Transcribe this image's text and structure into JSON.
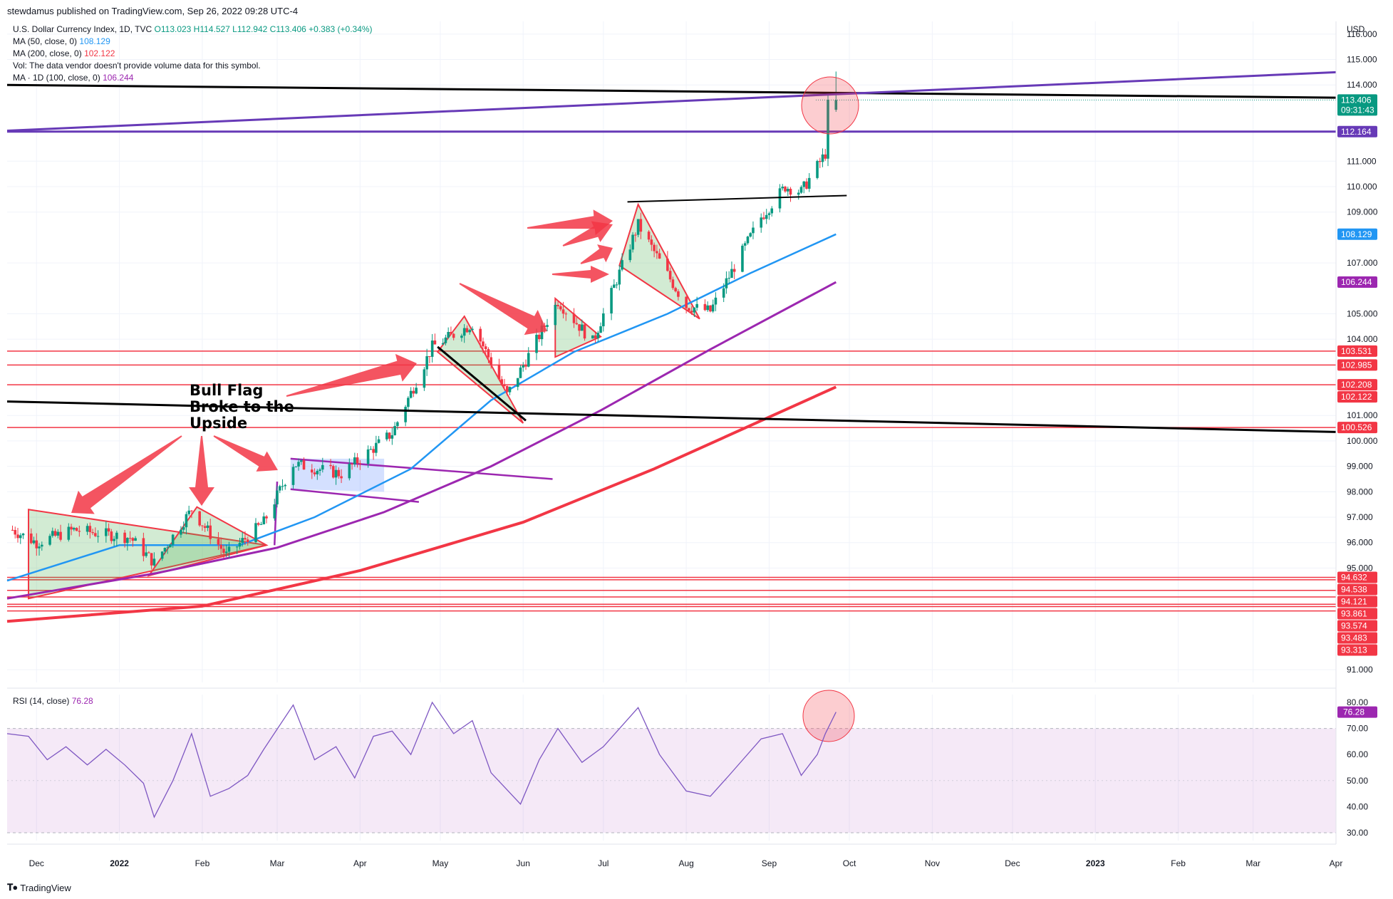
{
  "header": {
    "published": "stewdamus published on TradingView.com, Sep 26, 2022 09:28 UTC-4",
    "symbol": "U.S. Dollar Currency Index, 1D, TVC",
    "ohlc": "O113.023  H114.527  L112.942  C113.406  +0.383 (+0.34%)",
    "ma50_label": "MA (50, close, 0)",
    "ma50_value": "108.129",
    "ma200_label": "MA (200, close, 0)",
    "ma200_value": "102.122",
    "vol_note": "Vol: The data vendor doesn't provide volume data for this symbol.",
    "ma100_label": "MA · 1D (100, close, 0)",
    "ma100_value": "106.244",
    "rsi_label": "RSI (14, close)",
    "rsi_value": "76.28"
  },
  "footer": {
    "brand": "TradingView"
  },
  "annotation": {
    "line1": "Bull Flag",
    "line2": "Broke to the",
    "line3": "Upside"
  },
  "colors": {
    "up": "#089981",
    "down": "#f23645",
    "ma50": "#2196f3",
    "ma100": "#9c27b0",
    "ma200": "#f23645",
    "rsi": "#7e57c2",
    "level": "#f23645",
    "trend": "#000000",
    "channel": "#673ab7"
  },
  "price_axis": {
    "unit": "USD",
    "ticks": [
      "116.000",
      "115.000",
      "114.000",
      "111.000",
      "110.000",
      "109.000",
      "107.000",
      "105.000",
      "104.000",
      "101.000",
      "100.000",
      "99.000",
      "98.000",
      "97.000",
      "96.000",
      "95.000",
      "91.000"
    ]
  },
  "rsi_axis": {
    "ticks": [
      "80.00",
      "70.00",
      "60.00",
      "50.00",
      "40.00",
      "30.00"
    ]
  },
  "time_axis": {
    "labels": [
      "Dec",
      "2022",
      "Feb",
      "Mar",
      "Apr",
      "May",
      "Jun",
      "Jul",
      "Aug",
      "Sep",
      "Oct",
      "Nov",
      "Dec",
      "2023",
      "Feb",
      "Mar",
      "Apr"
    ]
  },
  "price_badges": [
    {
      "text": "113.406",
      "sub": "09:31:43",
      "price": 113.406,
      "color": "#089981"
    },
    {
      "text": "112.164",
      "price": 112.164,
      "color": "#673ab7"
    },
    {
      "text": "108.129",
      "price": 108.129,
      "color": "#2196f3"
    },
    {
      "text": "106.244",
      "price": 106.244,
      "color": "#9c27b0"
    },
    {
      "text": "103.531",
      "price": 103.531,
      "color": "#f23645"
    },
    {
      "text": "102.985",
      "price": 102.985,
      "color": "#f23645"
    },
    {
      "text": "102.208",
      "price": 102.208,
      "color": "#f23645"
    },
    {
      "text": "102.122",
      "price": 102.122,
      "color": "#f23645"
    },
    {
      "text": "100.526",
      "price": 100.526,
      "color": "#f23645"
    },
    {
      "text": "94.632",
      "price": 94.632,
      "color": "#f23645"
    },
    {
      "text": "94.538",
      "price": 94.538,
      "color": "#f23645"
    },
    {
      "text": "94.121",
      "price": 94.121,
      "color": "#f23645"
    },
    {
      "text": "93.861",
      "price": 93.861,
      "color": "#f23645"
    },
    {
      "text": "93.574",
      "price": 93.574,
      "color": "#f23645"
    },
    {
      "text": "93.483",
      "price": 93.483,
      "color": "#f23645"
    },
    {
      "text": "93.313",
      "price": 93.313,
      "color": "#f23645"
    }
  ],
  "rsi_badge": {
    "text": "76.28",
    "value": 76.28,
    "color": "#9c27b0"
  },
  "chart_data": {
    "type": "candlestick",
    "title": "U.S. Dollar Currency Index, 1D, TVC",
    "ylabel": "USD",
    "ylim": [
      90.5,
      116.5
    ],
    "x_range": [
      "2021-11-20",
      "2023-04-01"
    ],
    "last_bar": {
      "date": "2022-09-26",
      "open": 113.023,
      "high": 114.527,
      "low": 112.942,
      "close": 113.406
    },
    "close_path": [
      {
        "date": "2021-11-22",
        "close": 96.5
      },
      {
        "date": "2021-12-01",
        "close": 96.0
      },
      {
        "date": "2021-12-15",
        "close": 96.5
      },
      {
        "date": "2022-01-05",
        "close": 96.2
      },
      {
        "date": "2022-01-14",
        "close": 95.2
      },
      {
        "date": "2022-01-28",
        "close": 97.3
      },
      {
        "date": "2022-02-10",
        "close": 95.5
      },
      {
        "date": "2022-02-24",
        "close": 96.8
      },
      {
        "date": "2022-03-07",
        "close": 99.1
      },
      {
        "date": "2022-03-25",
        "close": 98.7
      },
      {
        "date": "2022-04-13",
        "close": 100.3
      },
      {
        "date": "2022-04-28",
        "close": 103.7
      },
      {
        "date": "2022-05-13",
        "close": 104.6
      },
      {
        "date": "2022-05-26",
        "close": 101.8
      },
      {
        "date": "2022-06-14",
        "close": 105.5
      },
      {
        "date": "2022-06-27",
        "close": 103.9
      },
      {
        "date": "2022-07-14",
        "close": 108.5
      },
      {
        "date": "2022-08-01",
        "close": 105.3
      },
      {
        "date": "2022-08-10",
        "close": 105.1
      },
      {
        "date": "2022-08-29",
        "close": 108.8
      },
      {
        "date": "2022-09-07",
        "close": 110.0
      },
      {
        "date": "2022-09-13",
        "close": 109.8
      },
      {
        "date": "2022-09-22",
        "close": 111.3
      },
      {
        "date": "2022-09-23",
        "close": 113.2
      },
      {
        "date": "2022-09-26",
        "close": 113.406
      }
    ],
    "ma50": [
      {
        "date": "2021-11-20",
        "v": 94.5
      },
      {
        "date": "2022-01-01",
        "v": 95.9
      },
      {
        "date": "2022-02-15",
        "v": 95.9
      },
      {
        "date": "2022-03-15",
        "v": 97.0
      },
      {
        "date": "2022-04-20",
        "v": 98.9
      },
      {
        "date": "2022-05-20",
        "v": 101.6
      },
      {
        "date": "2022-06-20",
        "v": 103.5
      },
      {
        "date": "2022-07-25",
        "v": 105.0
      },
      {
        "date": "2022-08-25",
        "v": 106.6
      },
      {
        "date": "2022-09-26",
        "v": 108.129
      }
    ],
    "ma100": [
      {
        "date": "2021-11-20",
        "v": 93.8
      },
      {
        "date": "2022-01-15",
        "v": 94.8
      },
      {
        "date": "2022-03-01",
        "v": 95.8
      },
      {
        "date": "2022-04-10",
        "v": 97.2
      },
      {
        "date": "2022-05-20",
        "v": 99.0
      },
      {
        "date": "2022-06-30",
        "v": 101.2
      },
      {
        "date": "2022-08-10",
        "v": 103.6
      },
      {
        "date": "2022-09-26",
        "v": 106.244
      }
    ],
    "ma200": [
      {
        "date": "2021-11-20",
        "v": 92.9
      },
      {
        "date": "2022-02-01",
        "v": 93.5
      },
      {
        "date": "2022-04-01",
        "v": 94.9
      },
      {
        "date": "2022-06-01",
        "v": 96.8
      },
      {
        "date": "2022-07-20",
        "v": 98.9
      },
      {
        "date": "2022-09-26",
        "v": 102.122
      }
    ],
    "levels": [
      103.531,
      102.985,
      102.208,
      100.526,
      94.632,
      94.538,
      94.121,
      93.861,
      93.574,
      93.483,
      93.313
    ],
    "rsi": {
      "ylim": [
        27,
        83
      ],
      "overbought": 70,
      "oversold": 30,
      "series": [
        {
          "date": "2021-11-20",
          "v": 68
        },
        {
          "date": "2021-11-28",
          "v": 67
        },
        {
          "date": "2021-12-05",
          "v": 58
        },
        {
          "date": "2021-12-12",
          "v": 63
        },
        {
          "date": "2021-12-20",
          "v": 56
        },
        {
          "date": "2021-12-27",
          "v": 62
        },
        {
          "date": "2022-01-03",
          "v": 56
        },
        {
          "date": "2022-01-10",
          "v": 49
        },
        {
          "date": "2022-01-14",
          "v": 36
        },
        {
          "date": "2022-01-21",
          "v": 50
        },
        {
          "date": "2022-01-28",
          "v": 68
        },
        {
          "date": "2022-02-04",
          "v": 44
        },
        {
          "date": "2022-02-11",
          "v": 47
        },
        {
          "date": "2022-02-18",
          "v": 52
        },
        {
          "date": "2022-02-24",
          "v": 62
        },
        {
          "date": "2022-03-07",
          "v": 79
        },
        {
          "date": "2022-03-15",
          "v": 58
        },
        {
          "date": "2022-03-23",
          "v": 63
        },
        {
          "date": "2022-03-30",
          "v": 51
        },
        {
          "date": "2022-04-06",
          "v": 67
        },
        {
          "date": "2022-04-13",
          "v": 69
        },
        {
          "date": "2022-04-20",
          "v": 60
        },
        {
          "date": "2022-04-28",
          "v": 80
        },
        {
          "date": "2022-05-06",
          "v": 68
        },
        {
          "date": "2022-05-13",
          "v": 73
        },
        {
          "date": "2022-05-20",
          "v": 53
        },
        {
          "date": "2022-05-31",
          "v": 41
        },
        {
          "date": "2022-06-07",
          "v": 58
        },
        {
          "date": "2022-06-14",
          "v": 70
        },
        {
          "date": "2022-06-23",
          "v": 57
        },
        {
          "date": "2022-07-01",
          "v": 63
        },
        {
          "date": "2022-07-14",
          "v": 78
        },
        {
          "date": "2022-07-22",
          "v": 60
        },
        {
          "date": "2022-08-01",
          "v": 46
        },
        {
          "date": "2022-08-10",
          "v": 44
        },
        {
          "date": "2022-08-17",
          "v": 52
        },
        {
          "date": "2022-08-29",
          "v": 66
        },
        {
          "date": "2022-09-06",
          "v": 68
        },
        {
          "date": "2022-09-13",
          "v": 52
        },
        {
          "date": "2022-09-19",
          "v": 60
        },
        {
          "date": "2022-09-22",
          "v": 68
        },
        {
          "date": "2022-09-26",
          "v": 76.28
        }
      ]
    }
  }
}
